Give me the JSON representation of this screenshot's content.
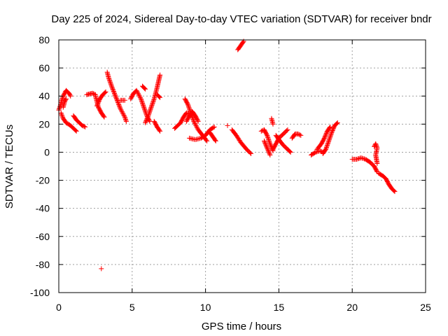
{
  "chart_data": {
    "type": "scatter",
    "title": "Day 225 of 2024, Sidereal Day-to-day VTEC variation (SDTVAR) for receiver bndr",
    "xlabel": "GPS time / hours",
    "ylabel": "SDTVAR / TECUs",
    "xlim": [
      0,
      25
    ],
    "ylim": [
      -100,
      80
    ],
    "xticks": [
      "0",
      "5",
      "10",
      "15",
      "20",
      "25"
    ],
    "yticks": [
      "-100",
      "-80",
      "-60",
      "-40",
      "-20",
      "0",
      "20",
      "40",
      "60",
      "80"
    ],
    "grid": true,
    "marker": "plus",
    "color": "#ff0000",
    "series": [
      {
        "segments": [
          [
            [
              0.0,
              30
            ],
            [
              0.1,
              33
            ],
            [
              0.2,
              37
            ],
            [
              0.3,
              40
            ],
            [
              0.4,
              42
            ],
            [
              0.5,
              44
            ],
            [
              0.6,
              43
            ],
            [
              0.7,
              42
            ],
            [
              0.8,
              40
            ]
          ],
          [
            [
              0.15,
              28
            ],
            [
              0.3,
              24
            ],
            [
              0.5,
              21
            ],
            [
              0.8,
              19
            ],
            [
              1.0,
              17
            ],
            [
              1.2,
              15
            ]
          ],
          [
            [
              0.3,
              32
            ],
            [
              0.4,
              36
            ],
            [
              0.5,
              38
            ]
          ],
          [
            [
              1.0,
              26
            ],
            [
              1.2,
              23
            ],
            [
              1.4,
              21
            ],
            [
              1.6,
              19
            ],
            [
              1.8,
              18
            ]
          ],
          [
            [
              1.9,
              41
            ],
            [
              2.1,
              41.5
            ],
            [
              2.3,
              42
            ],
            [
              2.5,
              41
            ]
          ],
          [
            [
              2.5,
              40
            ],
            [
              2.6,
              36
            ],
            [
              2.7,
              32
            ],
            [
              2.9,
              28
            ],
            [
              3.1,
              25
            ]
          ],
          [
            [
              2.6,
              33
            ],
            [
              2.8,
              38
            ],
            [
              3.0,
              41
            ],
            [
              3.2,
              43
            ]
          ],
          [
            [
              3.3,
              57
            ],
            [
              3.4,
              53
            ],
            [
              3.6,
              47
            ],
            [
              3.9,
              39
            ],
            [
              4.2,
              31
            ],
            [
              4.5,
              25
            ],
            [
              4.6,
              22
            ]
          ],
          [
            [
              4.2,
              37
            ],
            [
              4.5,
              37
            ]
          ],
          [
            [
              4.9,
              38
            ],
            [
              5.1,
              42
            ],
            [
              5.3,
              44
            ],
            [
              5.6,
              38
            ],
            [
              5.8,
              32
            ],
            [
              6.0,
              26
            ],
            [
              6.2,
              22
            ]
          ],
          [
            [
              5.7,
              47
            ],
            [
              5.9,
              45
            ]
          ],
          [
            [
              5.9,
              21
            ],
            [
              6.1,
              26
            ],
            [
              6.3,
              32
            ],
            [
              6.5,
              38
            ],
            [
              6.7,
              46
            ],
            [
              6.9,
              55
            ]
          ],
          [
            [
              6.5,
              22
            ],
            [
              6.7,
              18
            ],
            [
              6.9,
              15
            ]
          ],
          [
            [
              6.7,
              41
            ],
            [
              6.9,
              39
            ]
          ],
          [
            [
              7.9,
              17
            ],
            [
              8.1,
              19
            ],
            [
              8.3,
              21
            ],
            [
              8.5,
              25
            ],
            [
              8.7,
              28
            ],
            [
              9.0,
              27
            ]
          ],
          [
            [
              8.6,
              38
            ],
            [
              8.8,
              34
            ],
            [
              9.0,
              28
            ],
            [
              9.2,
              22
            ],
            [
              9.5,
              16
            ],
            [
              9.8,
              12
            ],
            [
              10.1,
              8
            ]
          ],
          [
            [
              8.7,
              22
            ],
            [
              8.9,
              26
            ],
            [
              9.1,
              29
            ],
            [
              9.3,
              26
            ],
            [
              9.5,
              22
            ]
          ],
          [
            [
              8.9,
              10
            ],
            [
              9.3,
              9
            ],
            [
              9.7,
              10
            ],
            [
              10.0,
              12
            ],
            [
              10.3,
              16
            ],
            [
              10.6,
              18
            ]
          ],
          [
            [
              10.3,
              14
            ],
            [
              10.5,
              11
            ],
            [
              10.7,
              8
            ]
          ],
          [
            [
              11.5,
              19
            ]
          ],
          [
            [
              11.8,
              16
            ],
            [
              12.1,
              12
            ],
            [
              12.4,
              7
            ],
            [
              12.8,
              2
            ],
            [
              13.1,
              -1
            ]
          ],
          [
            [
              12.2,
              73
            ],
            [
              12.4,
              76
            ],
            [
              12.6,
              79
            ]
          ],
          [
            [
              13.8,
              15
            ],
            [
              14.0,
              16
            ],
            [
              14.2,
              12
            ],
            [
              14.4,
              6
            ],
            [
              14.6,
              1
            ]
          ],
          [
            [
              14.0,
              8
            ],
            [
              14.2,
              3
            ],
            [
              14.4,
              -2
            ]
          ],
          [
            [
              14.5,
              24
            ],
            [
              14.6,
              20
            ]
          ],
          [
            [
              14.6,
              2
            ],
            [
              14.8,
              6
            ],
            [
              15.0,
              10
            ],
            [
              15.3,
              13
            ],
            [
              15.6,
              16
            ]
          ],
          [
            [
              14.8,
              12
            ],
            [
              15.0,
              9
            ],
            [
              15.3,
              5
            ],
            [
              15.6,
              2
            ],
            [
              15.8,
              0
            ]
          ],
          [
            [
              15.9,
              10
            ],
            [
              16.1,
              13
            ],
            [
              16.3,
              13
            ],
            [
              16.5,
              12
            ]
          ],
          [
            [
              17.2,
              -2
            ],
            [
              17.5,
              0
            ],
            [
              17.8,
              1
            ],
            [
              18.0,
              0
            ]
          ],
          [
            [
              17.6,
              2
            ],
            [
              17.9,
              6
            ],
            [
              18.1,
              10
            ],
            [
              18.3,
              15
            ],
            [
              18.5,
              18
            ]
          ],
          [
            [
              18.0,
              -1
            ],
            [
              18.2,
              2
            ],
            [
              18.4,
              8
            ],
            [
              18.6,
              14
            ],
            [
              18.8,
              19
            ],
            [
              19.0,
              21
            ]
          ],
          [
            [
              20.0,
              -5
            ],
            [
              20.3,
              -5
            ],
            [
              20.6,
              -4
            ],
            [
              20.9,
              -5
            ],
            [
              21.2,
              -7
            ],
            [
              21.5,
              -10
            ],
            [
              21.7,
              -14
            ]
          ],
          [
            [
              21.5,
              4
            ],
            [
              21.6,
              6
            ],
            [
              21.7,
              3
            ],
            [
              21.6,
              -2
            ],
            [
              21.7,
              -8
            ]
          ],
          [
            [
              21.8,
              -15
            ],
            [
              22.1,
              -17
            ],
            [
              22.3,
              -19
            ],
            [
              22.5,
              -23
            ],
            [
              22.7,
              -26
            ],
            [
              22.9,
              -28
            ]
          ],
          [
            [
              2.9,
              -83
            ]
          ]
        ]
      }
    ]
  }
}
